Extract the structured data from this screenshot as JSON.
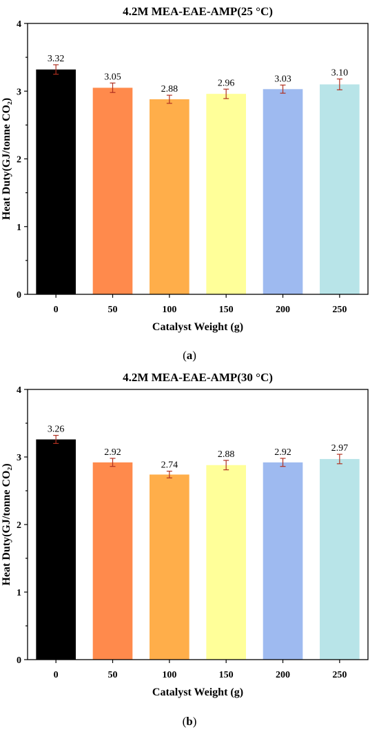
{
  "chart_data": [
    {
      "type": "bar",
      "title": "4.2M MEA-EAE-AMP(25 °C)",
      "xlabel": "Catalyst  Weight (g)",
      "ylabel": "Heat Duty(GJ/tonne CO₂)",
      "categories": [
        "0",
        "50",
        "100",
        "150",
        "200",
        "250"
      ],
      "values": [
        3.32,
        3.05,
        2.88,
        2.96,
        3.03,
        3.1
      ],
      "value_labels": [
        "3.32",
        "3.05",
        "2.88",
        "2.96",
        "3.03",
        "3.10"
      ],
      "error": [
        0.07,
        0.07,
        0.06,
        0.07,
        0.06,
        0.08
      ],
      "colors": [
        "#000000",
        "#ff8a4c",
        "#ffae4a",
        "#ffff99",
        "#9ebaf0",
        "#b8e4e8"
      ],
      "yticks": [
        "0",
        "1",
        "2",
        "3",
        "4"
      ],
      "ylim": [
        0,
        4
      ],
      "grid": false,
      "caption": "a"
    },
    {
      "type": "bar",
      "title": "4.2M MEA-EAE-AMP(30 °C)",
      "xlabel": "Catalyst  Weight (g)",
      "ylabel": "Heat Duty(GJ/tonne CO₂)",
      "categories": [
        "0",
        "50",
        "100",
        "150",
        "200",
        "250"
      ],
      "values": [
        3.26,
        2.92,
        2.74,
        2.88,
        2.92,
        2.97
      ],
      "value_labels": [
        "3.26",
        "2.92",
        "2.74",
        "2.88",
        "2.92",
        "2.97"
      ],
      "error": [
        0.06,
        0.06,
        0.05,
        0.07,
        0.06,
        0.07
      ],
      "colors": [
        "#000000",
        "#ff8a4c",
        "#ffae4a",
        "#ffff99",
        "#9ebaf0",
        "#b8e4e8"
      ],
      "yticks": [
        "0",
        "1",
        "2",
        "3",
        "4"
      ],
      "ylim": [
        0,
        4
      ],
      "grid": false,
      "caption": "b"
    }
  ]
}
